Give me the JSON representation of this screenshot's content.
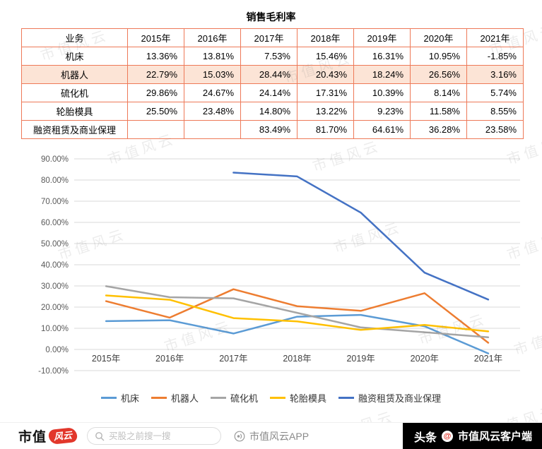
{
  "title": "销售毛利率",
  "table": {
    "headers": [
      "业务",
      "2015年",
      "2016年",
      "2017年",
      "2018年",
      "2019年",
      "2020年",
      "2021年"
    ],
    "rows": [
      {
        "name": "机床",
        "highlight": false,
        "values": [
          "13.36%",
          "13.81%",
          "7.53%",
          "15.46%",
          "16.31%",
          "10.95%",
          "-1.85%"
        ]
      },
      {
        "name": "机器人",
        "highlight": true,
        "values": [
          "22.79%",
          "15.03%",
          "28.44%",
          "20.43%",
          "18.24%",
          "26.56%",
          "3.16%"
        ]
      },
      {
        "name": "硫化机",
        "highlight": false,
        "values": [
          "29.86%",
          "24.67%",
          "24.14%",
          "17.31%",
          "10.39%",
          "8.14%",
          "5.74%"
        ]
      },
      {
        "name": "轮胎模具",
        "highlight": false,
        "values": [
          "25.50%",
          "23.48%",
          "14.80%",
          "13.22%",
          "9.23%",
          "11.58%",
          "8.55%"
        ]
      },
      {
        "name": "融资租赁及商业保理",
        "highlight": false,
        "values": [
          "",
          "",
          "83.49%",
          "81.70%",
          "64.61%",
          "36.28%",
          "23.58%"
        ]
      }
    ]
  },
  "chart_data": {
    "type": "line",
    "title": "销售毛利率",
    "categories": [
      "2015年",
      "2016年",
      "2017年",
      "2018年",
      "2019年",
      "2020年",
      "2021年"
    ],
    "series": [
      {
        "name": "机床",
        "color": "#5B9BD5",
        "values": [
          13.36,
          13.81,
          7.53,
          15.46,
          16.31,
          10.95,
          -1.85
        ]
      },
      {
        "name": "机器人",
        "color": "#ED7D31",
        "values": [
          22.79,
          15.03,
          28.44,
          20.43,
          18.24,
          26.56,
          3.16
        ]
      },
      {
        "name": "硫化机",
        "color": "#A5A5A5",
        "values": [
          29.86,
          24.67,
          24.14,
          17.31,
          10.39,
          8.14,
          5.74
        ]
      },
      {
        "name": "轮胎模具",
        "color": "#FFC000",
        "values": [
          25.5,
          23.48,
          14.8,
          13.22,
          9.23,
          11.58,
          8.55
        ]
      },
      {
        "name": "融资租赁及商业保理",
        "color": "#4472C4",
        "values": [
          null,
          null,
          83.49,
          81.7,
          64.61,
          36.28,
          23.58
        ]
      }
    ],
    "ylim": [
      -10,
      90
    ],
    "ytick_step": 10,
    "ytick_format": "0.00%",
    "grid": true,
    "legend_position": "bottom"
  },
  "watermark": "市值风云",
  "footer": {
    "logo_black": "市值",
    "logo_red": "风云",
    "search_placeholder": "买股之前搜一搜",
    "app_label": "市值风云APP",
    "channel_prefix": "头条",
    "at_symbol": "@",
    "channel_handle": "市值风云客户端"
  },
  "colors": {
    "table_border": "#ee7958",
    "highlight_row": "#fce4d6",
    "brand_red": "#e2372b",
    "grid_line": "#d9d9d9"
  }
}
